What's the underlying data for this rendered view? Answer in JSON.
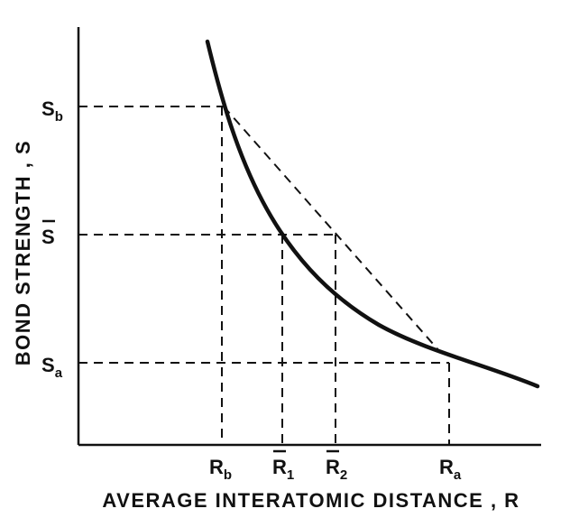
{
  "x_axis": {
    "title": "AVERAGE INTERATOMIC DISTANCE , R",
    "ticks": [
      {
        "main": "R",
        "sub": "b",
        "overbar": false
      },
      {
        "main": "R",
        "sub": "1",
        "overbar": true
      },
      {
        "main": "R",
        "sub": "2",
        "overbar": true
      },
      {
        "main": "R",
        "sub": "a",
        "overbar": false
      }
    ]
  },
  "y_axis": {
    "title": "BOND STRENGTH , S",
    "ticks": [
      {
        "main": "S",
        "sub": "b",
        "overbar": false
      },
      {
        "main": "S",
        "sub": "",
        "overbar": true
      },
      {
        "main": "S",
        "sub": "a",
        "overbar": false
      }
    ]
  },
  "colors": {
    "ink": "#111111",
    "background": "#ffffff"
  }
}
